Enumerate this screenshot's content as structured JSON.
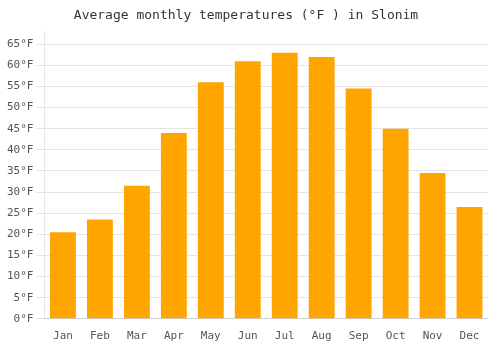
{
  "chart_data": {
    "type": "bar",
    "title": "Average monthly temperatures (°F ) in Slonim",
    "categories": [
      "Jan",
      "Feb",
      "Mar",
      "Apr",
      "May",
      "Jun",
      "Jul",
      "Aug",
      "Sep",
      "Oct",
      "Nov",
      "Dec"
    ],
    "values": [
      20.5,
      23.5,
      31.5,
      44,
      56,
      61,
      63,
      62,
      54.5,
      45,
      34.5,
      26.5
    ],
    "color": "#FFA500",
    "ylim": [
      0,
      68
    ],
    "yticks": [
      {
        "value": 0,
        "label": "0°F"
      },
      {
        "value": 5,
        "label": "5°F"
      },
      {
        "value": 10,
        "label": "10°F"
      },
      {
        "value": 15,
        "label": "15°F"
      },
      {
        "value": 20,
        "label": "20°F"
      },
      {
        "value": 25,
        "label": "25°F"
      },
      {
        "value": 30,
        "label": "30°F"
      },
      {
        "value": 35,
        "label": "35°F"
      },
      {
        "value": 40,
        "label": "40°F"
      },
      {
        "value": 45,
        "label": "45°F"
      },
      {
        "value": 50,
        "label": "50°F"
      },
      {
        "value": 55,
        "label": "55°F"
      },
      {
        "value": 60,
        "label": "60°F"
      },
      {
        "value": 65,
        "label": "65°F"
      }
    ],
    "grid": true
  }
}
